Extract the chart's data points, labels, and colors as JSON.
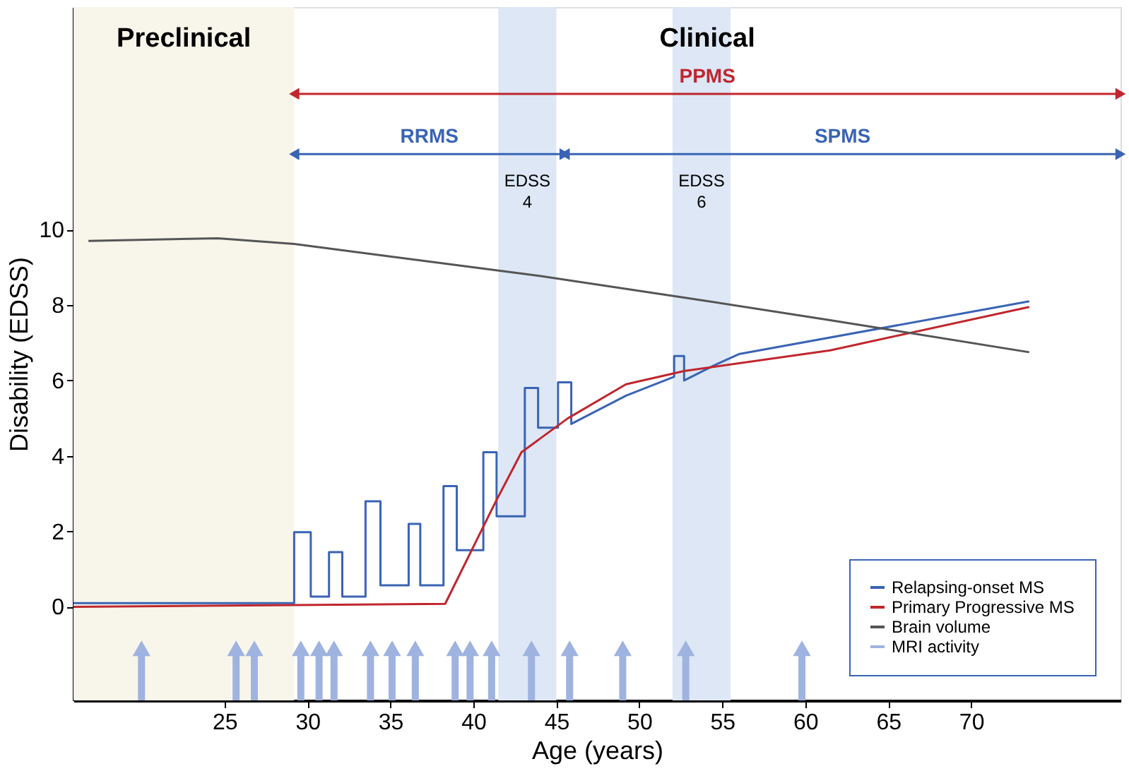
{
  "chart_data": {
    "type": "line",
    "xlabel": "Age (years)",
    "ylabel": "Disability (EDSS)",
    "xlim": [
      15.9,
      79
    ],
    "ylim": [
      -2.48,
      15.9
    ],
    "xticks": [
      25,
      30,
      35,
      40,
      45,
      50,
      55,
      60,
      65,
      70
    ],
    "yticks": [
      0,
      2,
      4,
      6,
      8,
      10
    ],
    "legend": "bottom right",
    "grid": false,
    "series": [
      {
        "name": "Relapsing-onset MS",
        "color": "#3a64b4",
        "x": [
          15.9,
          29.2,
          29.2,
          30.2,
          30.2,
          31.3,
          31.3,
          32.1,
          32.1,
          33.5,
          33.5,
          34.4,
          34.4,
          36.1,
          36.1,
          36.8,
          36.8,
          38.2,
          38.2,
          39.0,
          39.0,
          40.6,
          40.6,
          41.4,
          41.4,
          43.1,
          43.1,
          43.9,
          43.9,
          45.1,
          45.1,
          45.9,
          45.9,
          49.2,
          52.1,
          52.1,
          52.7,
          52.7,
          54.5,
          56.0,
          73.5
        ],
        "values": [
          0.1,
          0.1,
          1.98,
          1.98,
          0.27,
          0.27,
          1.45,
          1.45,
          0.27,
          0.27,
          2.8,
          2.8,
          0.57,
          0.57,
          2.2,
          2.2,
          0.57,
          0.57,
          3.2,
          3.2,
          1.5,
          1.5,
          4.1,
          4.1,
          2.4,
          2.4,
          5.8,
          5.8,
          4.75,
          4.75,
          5.95,
          5.95,
          4.85,
          5.6,
          6.1,
          6.65,
          6.65,
          6.0,
          6.4,
          6.7,
          8.1
        ]
      },
      {
        "name": "Primary Progressive MS",
        "color": "#c0262d",
        "x": [
          15.9,
          38.3,
          41.3,
          42.9,
          45.7,
          49.2,
          52.7,
          61.5,
          73.5
        ],
        "values": [
          0,
          0.08,
          2.75,
          4.1,
          5.0,
          5.9,
          6.25,
          6.8,
          7.95
        ]
      },
      {
        "name": "Brain volume",
        "color": "#555555",
        "x": [
          16.8,
          24.6,
          29.2,
          43.9,
          52.7,
          61.5,
          73.5
        ],
        "values": [
          9.7,
          9.77,
          9.62,
          8.78,
          8.2,
          7.6,
          6.75
        ]
      },
      {
        "name": "MRI activity",
        "type": "scatter",
        "marker": "triangle",
        "color": "#9fb3e0",
        "x": [
          20.0,
          25.7,
          26.8,
          29.6,
          30.7,
          31.6,
          33.8,
          35.1,
          36.5,
          38.9,
          39.8,
          41.1,
          43.5,
          45.8,
          49.0,
          52.8,
          59.8
        ],
        "values": [
          -1.1,
          -1.1,
          -1.1,
          -1.1,
          -1.1,
          -1.1,
          -1.1,
          -1.1,
          -1.1,
          -1.1,
          -1.1,
          -1.1,
          -1.1,
          -1.1,
          -1.1,
          -1.1,
          -1.1
        ],
        "errors": [
          [
            -2.48,
            -1.1
          ],
          [
            -2.48,
            -1.1
          ],
          [
            -2.48,
            -1.1
          ],
          [
            -2.48,
            -1.1
          ],
          [
            -2.48,
            -1.1
          ],
          [
            -2.48,
            -1.1
          ],
          [
            -2.48,
            -1.1
          ],
          [
            -2.48,
            -1.1
          ],
          [
            -2.48,
            -1.1
          ],
          [
            -2.48,
            -1.1
          ],
          [
            -2.48,
            -1.1
          ],
          [
            -2.48,
            -1.1
          ],
          [
            -2.48,
            -1.1
          ],
          [
            -2.48,
            -1.1
          ],
          [
            -2.48,
            -1.1
          ],
          [
            -2.48,
            -1.1
          ],
          [
            -2.48,
            -1.1
          ]
        ]
      },
      {
        "name": "PPMS",
        "color": "#c0262d",
        "marker": "triangle",
        "x": [
          29.2,
          79
        ],
        "values": [
          13.6,
          13.6
        ]
      },
      {
        "name": "RRMS",
        "color": "#3a64b4",
        "marker": "triangle",
        "x": [
          29.2,
          45.5
        ],
        "values": [
          12.0,
          12.0
        ]
      },
      {
        "name": "SPMS",
        "color": "#3a64b4",
        "marker": "triangle",
        "x": [
          45.5,
          79
        ],
        "values": [
          12.0,
          12.0
        ]
      }
    ],
    "bands": [
      {
        "axis": "x",
        "from": 15.9,
        "to": 29.2,
        "color": "#f8f5ea"
      },
      {
        "axis": "x",
        "from": 41.5,
        "to": 45.0,
        "label": "EDSS 4",
        "color": "#dde7f6"
      },
      {
        "axis": "x",
        "from": 52.0,
        "to": 55.5,
        "label": "EDSS 6",
        "color": "#dde7f6"
      }
    ],
    "annotations": [
      "Preclinical",
      "Clinical"
    ]
  }
}
